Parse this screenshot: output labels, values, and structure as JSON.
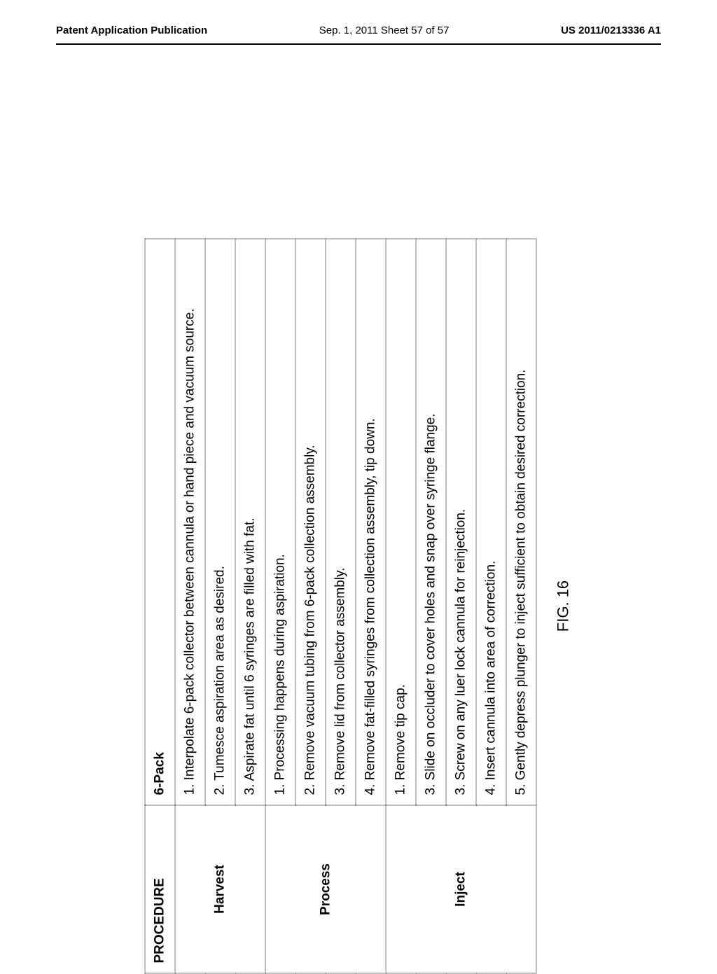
{
  "header": {
    "left": "Patent Application Publication",
    "center": "Sep. 1, 2011  Sheet 57 of 57",
    "right": "US 2011/0213336 A1"
  },
  "table": {
    "columns": {
      "procedure": "PROCEDURE",
      "device": "6-Pack"
    },
    "sections": [
      {
        "name": "Harvest",
        "steps": [
          "1. Interpolate 6-pack collector between cannula or hand piece and vacuum source.",
          "2. Tumesce aspiration area as desired.",
          "3. Aspirate fat until 6 syringes are filled with fat."
        ]
      },
      {
        "name": "Process",
        "steps": [
          "1. Processing happens during aspiration.",
          "2. Remove vacuum tubing from 6-pack collection assembly.",
          "3. Remove lid from collector assembly.",
          "4. Remove fat-filled syringes from collection assembly, tip down."
        ]
      },
      {
        "name": "Inject",
        "steps": [
          "1. Remove tip cap.",
          "3. Slide on occluder to cover holes and snap over syringe flange.",
          "3. Screw on any luer lock cannula for reinjection.",
          "4. Insert cannula into area of correction.",
          "5. Gently depress plunger to inject sufficient to obtain desired correction."
        ]
      }
    ]
  },
  "figure_caption": "FIG. 16"
}
